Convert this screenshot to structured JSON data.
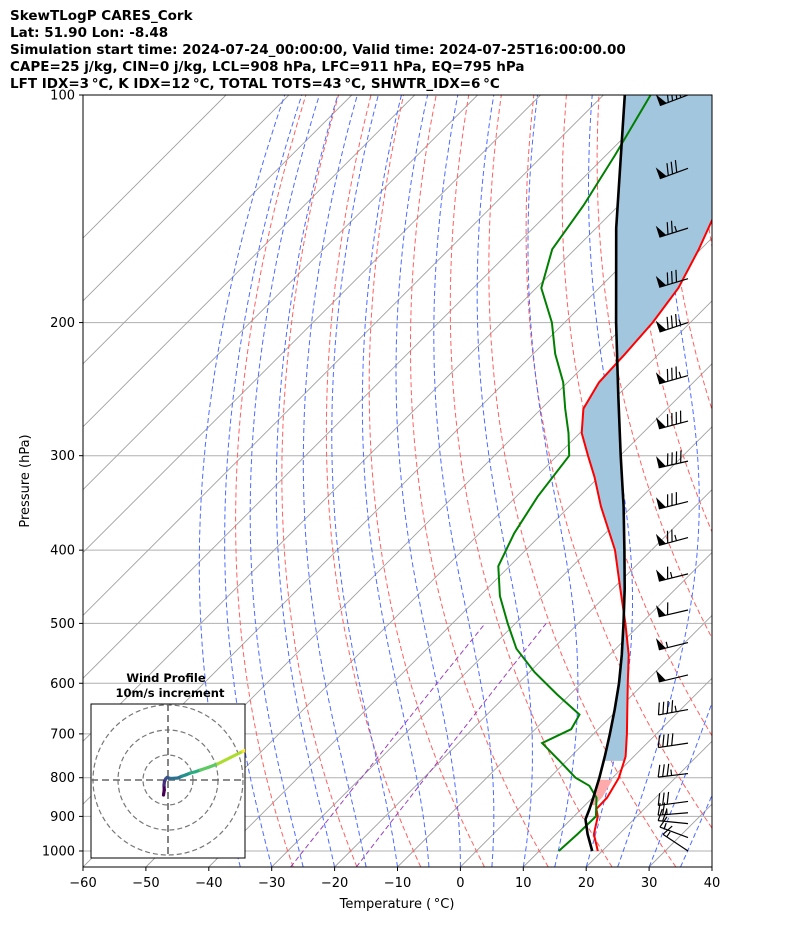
{
  "header": {
    "line1": "SkewTLogP CARES_Cork",
    "line2": "Lat: 51.90   Lon: -8.48",
    "line3": "Simulation start time: 2024-07-24_00:00:00, Valid time: 2024-07-25T16:00:00.00",
    "line4": "CAPE=25 j/kg, CIN=0 j/kg, LCL=908 hPa, LFC=911 hPa, EQ=795 hPa",
    "line5": "LFT IDX=3 °C, K IDX=12 °C, TOTAL TOTS=43 °C, SHWTR_IDX=6 °C"
  },
  "colors": {
    "temperature": "#ff0000",
    "dewpoint": "#008000",
    "parcel": "#000000",
    "cape_fill": "#a3c6df",
    "dry_adiabat": "#ff6060",
    "moist_adiabat": "#4d6bff",
    "mixing_ratio": "#9b3fbf",
    "isotherm": "#a0a0a0",
    "isobar": "#b0b0b0"
  },
  "chart_data": {
    "type": "skew-t log-p",
    "xlabel": "Temperature ( °C)",
    "ylabel": "Pressure (hPa)",
    "xlim": [
      -60,
      40
    ],
    "ylim": [
      1050,
      100
    ],
    "x_scale": "linear (skewed)",
    "y_scale": "log",
    "xticks": [
      "−60",
      "−50",
      "−40",
      "−30",
      "−20",
      "−10",
      "0",
      "10",
      "20",
      "30",
      "40"
    ],
    "yticks": [
      "100",
      "200",
      "300",
      "400",
      "500",
      "600",
      "700",
      "800",
      "900",
      "1000"
    ],
    "grid": true,
    "temperature_profile": {
      "pressure_hPa": [
        1000,
        950,
        900,
        880,
        850,
        800,
        750,
        700,
        650,
        600,
        550,
        500,
        450,
        400,
        350,
        320,
        300,
        280,
        260,
        240,
        220,
        200,
        180,
        160,
        140,
        120,
        110,
        100
      ],
      "temp_C": [
        19.3,
        16.0,
        13.8,
        12.4,
        12.3,
        11.0,
        8.7,
        5.3,
        1.5,
        -2.6,
        -7.0,
        -12.5,
        -18.8,
        -25.8,
        -35.0,
        -40.7,
        -45.1,
        -49.7,
        -53.3,
        -55.0,
        -55.4,
        -56.0,
        -57.4,
        -60.3,
        -64.1,
        -69.8,
        -73.3,
        -76.6
      ]
    },
    "dewpoint_profile": {
      "pressure_hPa": [
        1000,
        950,
        900,
        850,
        820,
        800,
        760,
        720,
        690,
        660,
        620,
        580,
        540,
        500,
        460,
        420,
        380,
        340,
        300,
        280,
        260,
        240,
        220,
        200,
        180,
        160,
        140,
        120,
        100
      ],
      "dewpoint_C": [
        13.1,
        13.4,
        13.5,
        10.6,
        7.6,
        4.1,
        -1.1,
        -6.7,
        -4.3,
        -5.3,
        -12.2,
        -19.2,
        -25.8,
        -31.2,
        -36.8,
        -41.8,
        -44.5,
        -46.6,
        -48.1,
        -51.8,
        -56.2,
        -60.7,
        -66.5,
        -72.0,
        -79.2,
        -83.6,
        -85.6,
        -88.6,
        -92.5
      ]
    },
    "parcel_profile": {
      "pressure_hPa": [
        1000,
        950,
        908,
        880,
        850,
        800,
        750,
        700,
        650,
        600,
        550,
        500,
        450,
        400,
        350,
        300,
        250,
        200,
        150,
        100
      ],
      "temp_C": [
        18.4,
        15.0,
        12.3,
        11.3,
        10.1,
        7.9,
        5.4,
        2.6,
        -0.5,
        -4.0,
        -8.1,
        -12.8,
        -18.1,
        -24.3,
        -31.4,
        -39.9,
        -49.8,
        -61.8,
        -76.8,
        -96.6
      ]
    },
    "wind_barbs": {
      "pressure_hPa": [
        100,
        125,
        150,
        175,
        200,
        235,
        270,
        305,
        345,
        385,
        430,
        480,
        530,
        585,
        650,
        720,
        790,
        860,
        890,
        920,
        960,
        1000
      ],
      "u_ms": [
        40,
        38,
        38,
        40,
        42,
        42,
        45,
        44,
        40,
        37,
        32,
        30,
        28,
        25,
        22,
        20,
        17,
        15,
        12,
        10,
        8,
        6
      ],
      "v_ms": [
        15,
        14,
        12,
        12,
        14,
        12,
        12,
        10,
        10,
        10,
        8,
        7,
        7,
        6,
        4,
        3,
        2,
        2,
        1,
        -1,
        -3,
        -4
      ]
    },
    "hodograph": {
      "title": "Wind Profile",
      "subtitle": "10m/s increment",
      "ring_step_ms": 10,
      "u_ms": [
        -1.8,
        -1.5,
        -1.6,
        -1.4,
        -0.9,
        -0.4,
        1.2,
        4.0,
        5.5,
        7.0,
        9.0,
        11.0,
        13.0,
        16.0,
        20.0,
        25.0,
        30.0,
        35.0
      ],
      "v_ms": [
        -6.0,
        -4.0,
        -2.0,
        -0.5,
        0.5,
        1.0,
        0.6,
        0.8,
        1.5,
        2.0,
        2.8,
        3.3,
        4.0,
        5.0,
        6.5,
        9.0,
        11.5,
        13.5
      ]
    }
  }
}
